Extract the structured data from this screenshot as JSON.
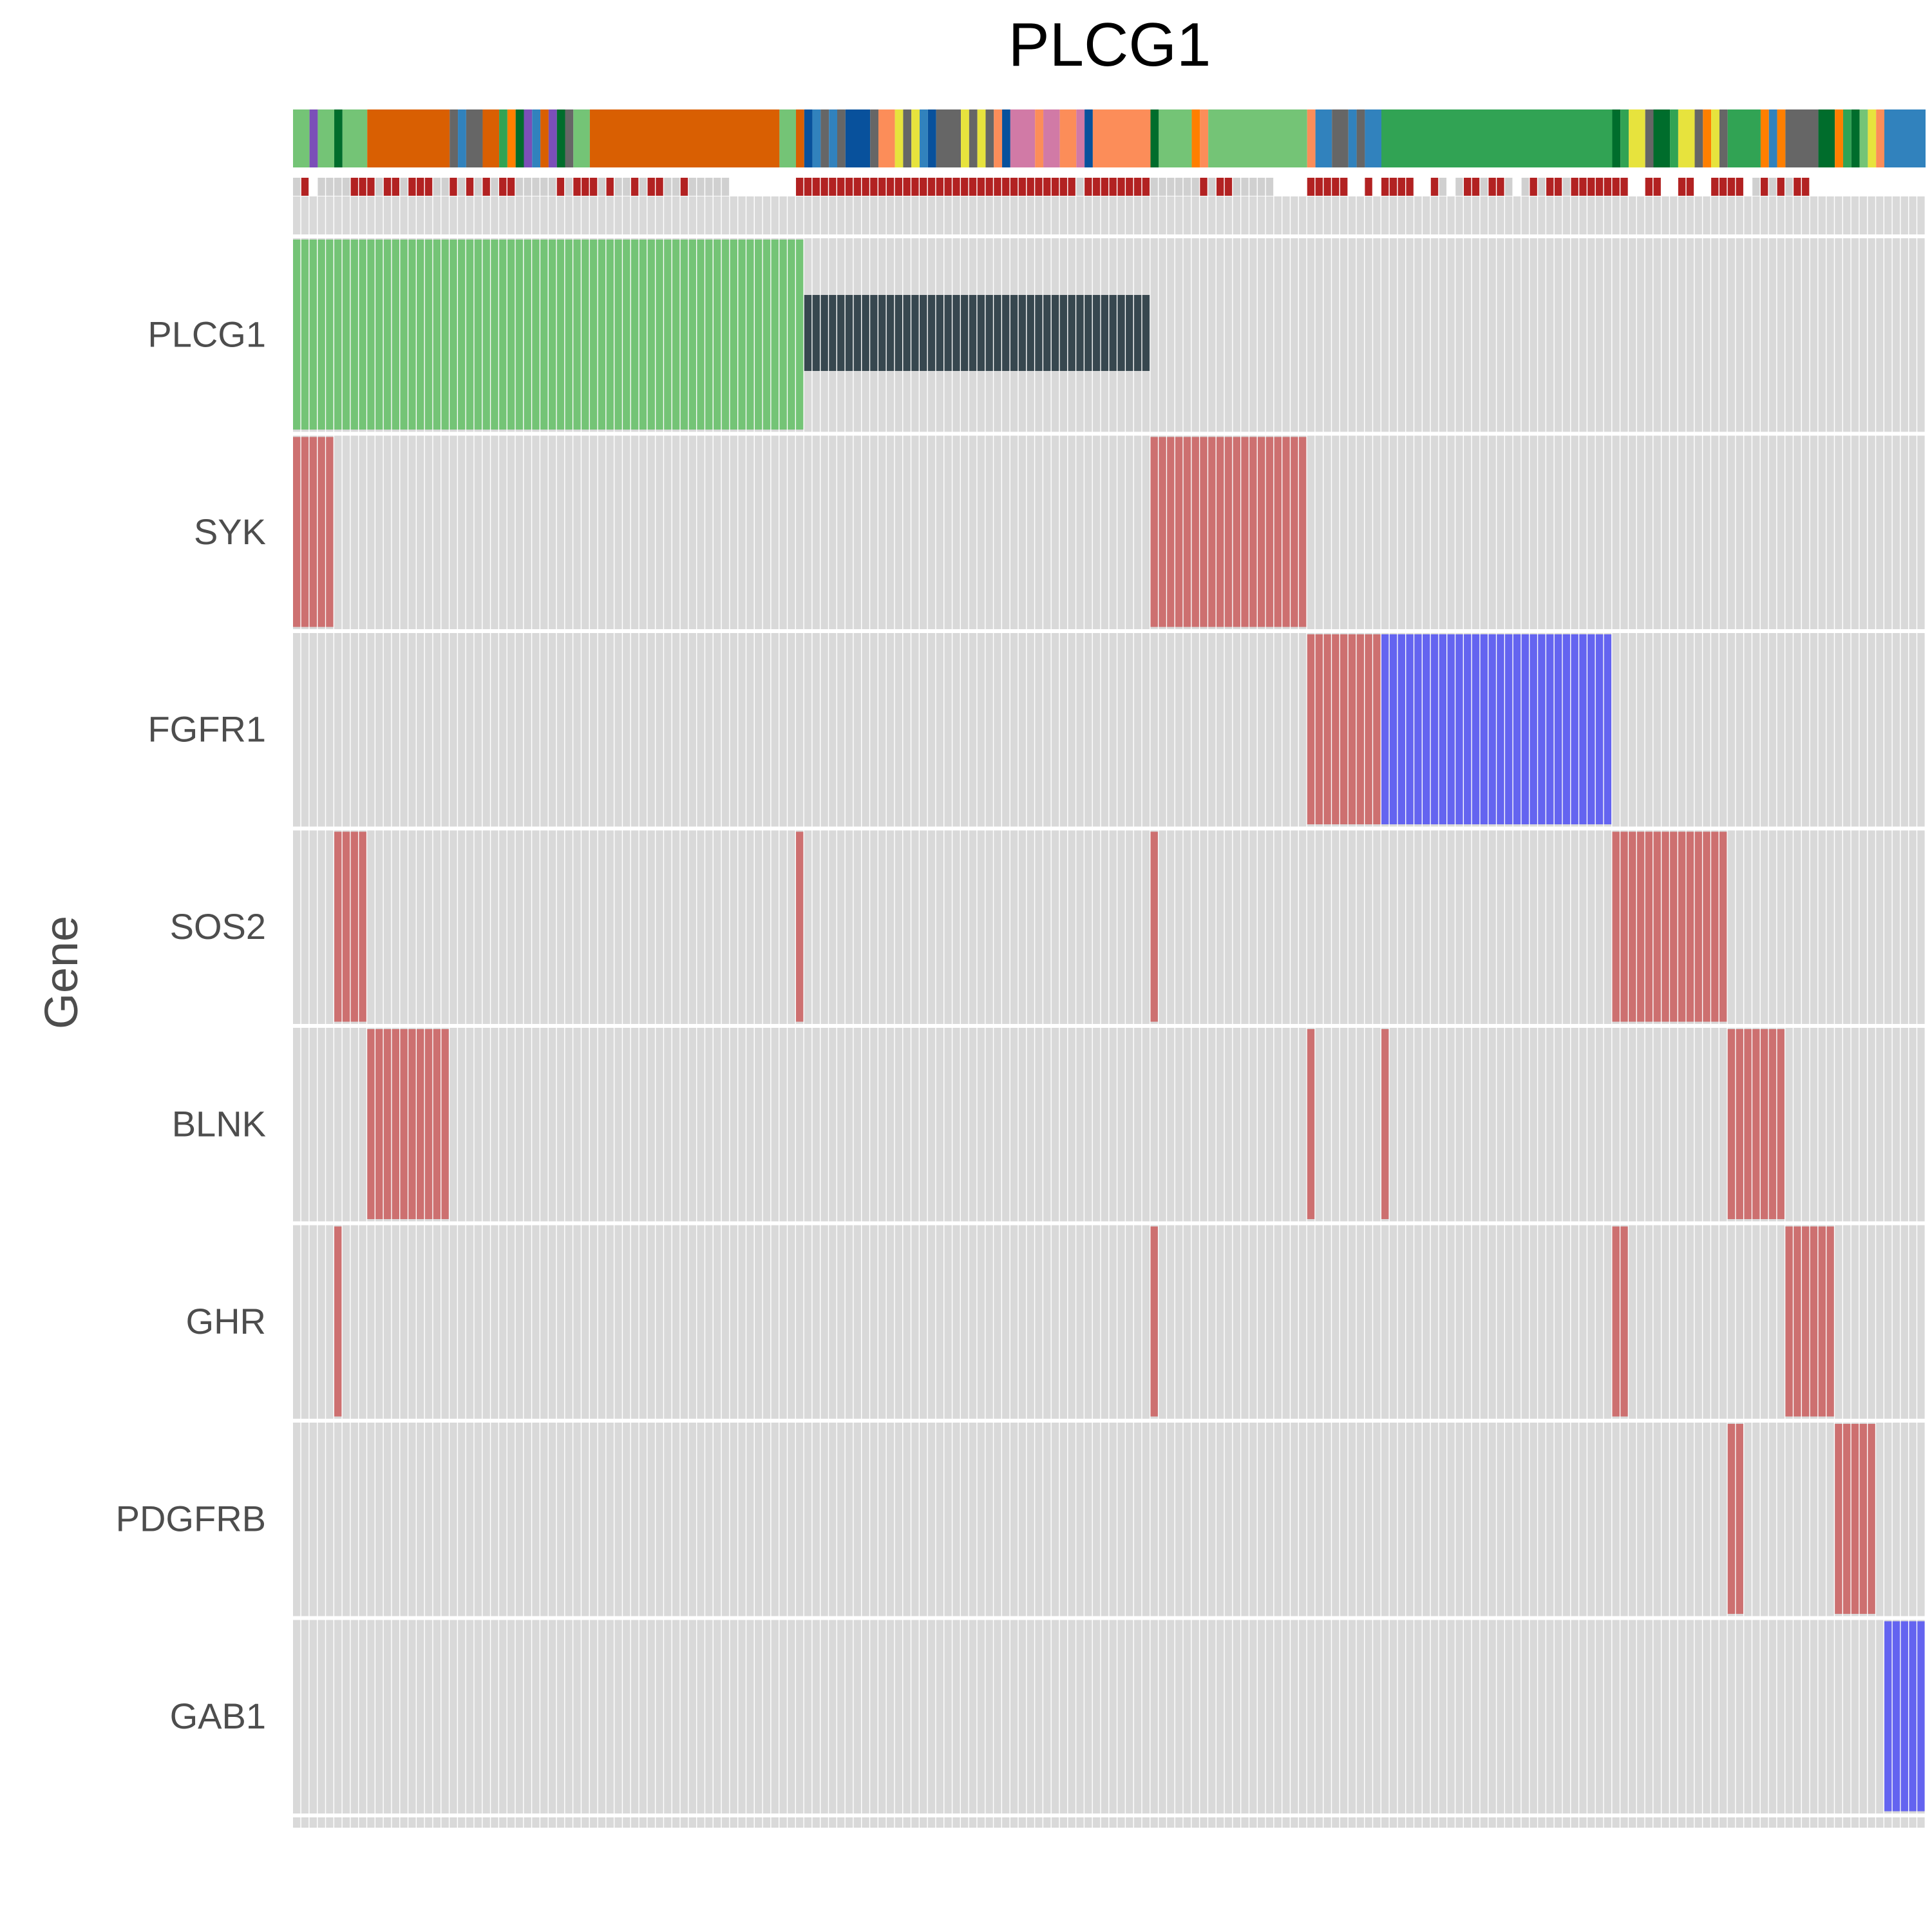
{
  "chart_data": {
    "type": "heatmap",
    "title": "PLCG1",
    "ylabel": "Gene",
    "xlabel": "",
    "genes": [
      "PLCG1",
      "SYK",
      "FGFR1",
      "SOS2",
      "BLNK",
      "GHR",
      "PDGFRB",
      "GAB1"
    ],
    "n_samples": 198,
    "alteration_colors": {
      "green": "#74c476",
      "dark": "#37474f",
      "red": "#cd7070",
      "blue": "#6464f0",
      "empty": "#d9d9d9"
    },
    "alterations": [
      {
        "gene": "PLCG1",
        "start": 0,
        "end": 62,
        "color": "green",
        "span": "full"
      },
      {
        "gene": "PLCG1",
        "start": 62,
        "end": 104,
        "color": "dark",
        "span": "partial"
      },
      {
        "gene": "SYK",
        "start": 0,
        "end": 5,
        "color": "red",
        "span": "full"
      },
      {
        "gene": "SYK",
        "start": 104,
        "end": 123,
        "color": "red",
        "span": "full"
      },
      {
        "gene": "FGFR1",
        "start": 123,
        "end": 132,
        "color": "red",
        "span": "full"
      },
      {
        "gene": "FGFR1",
        "start": 132,
        "end": 160,
        "color": "blue",
        "span": "full"
      },
      {
        "gene": "SOS2",
        "start": 5,
        "end": 9,
        "color": "red",
        "span": "full"
      },
      {
        "gene": "SOS2",
        "start": 61,
        "end": 62,
        "color": "red",
        "span": "full"
      },
      {
        "gene": "SOS2",
        "start": 104,
        "end": 105,
        "color": "red",
        "span": "full"
      },
      {
        "gene": "SOS2",
        "start": 160,
        "end": 174,
        "color": "red",
        "span": "full"
      },
      {
        "gene": "BLNK",
        "start": 9,
        "end": 19,
        "color": "red",
        "span": "full"
      },
      {
        "gene": "BLNK",
        "start": 123,
        "end": 124,
        "color": "red",
        "span": "full"
      },
      {
        "gene": "BLNK",
        "start": 132,
        "end": 133,
        "color": "red",
        "span": "full"
      },
      {
        "gene": "BLNK",
        "start": 174,
        "end": 181,
        "color": "red",
        "span": "full"
      },
      {
        "gene": "GHR",
        "start": 5,
        "end": 6,
        "color": "red",
        "span": "full"
      },
      {
        "gene": "GHR",
        "start": 104,
        "end": 105,
        "color": "red",
        "span": "full"
      },
      {
        "gene": "GHR",
        "start": 160,
        "end": 162,
        "color": "red",
        "span": "full"
      },
      {
        "gene": "GHR",
        "start": 181,
        "end": 187,
        "color": "red",
        "span": "full"
      },
      {
        "gene": "PDGFRB",
        "start": 174,
        "end": 176,
        "color": "red",
        "span": "full"
      },
      {
        "gene": "PDGFRB",
        "start": 187,
        "end": 192,
        "color": "red",
        "span": "full"
      },
      {
        "gene": "GAB1",
        "start": 193,
        "end": 198,
        "color": "blue",
        "span": "full"
      }
    ],
    "annotation_track_1": [
      {
        "start": 0,
        "end": 2,
        "color": "#74c476"
      },
      {
        "start": 2,
        "end": 3,
        "color": "#7b4fb8"
      },
      {
        "start": 3,
        "end": 5,
        "color": "#74c476"
      },
      {
        "start": 5,
        "end": 6,
        "color": "#006d2c"
      },
      {
        "start": 6,
        "end": 9,
        "color": "#74c476"
      },
      {
        "start": 9,
        "end": 19,
        "color": "#d95f02"
      },
      {
        "start": 19,
        "end": 20,
        "color": "#666666"
      },
      {
        "start": 20,
        "end": 21,
        "color": "#3182bd"
      },
      {
        "start": 21,
        "end": 23,
        "color": "#666666"
      },
      {
        "start": 23,
        "end": 25,
        "color": "#d95f02"
      },
      {
        "start": 25,
        "end": 26,
        "color": "#31a354"
      },
      {
        "start": 26,
        "end": 27,
        "color": "#ff7f00"
      },
      {
        "start": 27,
        "end": 28,
        "color": "#006d2c"
      },
      {
        "start": 28,
        "end": 29,
        "color": "#7b4fb8"
      },
      {
        "start": 29,
        "end": 30,
        "color": "#3182bd"
      },
      {
        "start": 30,
        "end": 31,
        "color": "#d95f02"
      },
      {
        "start": 31,
        "end": 32,
        "color": "#7b4fb8"
      },
      {
        "start": 32,
        "end": 33,
        "color": "#006d2c"
      },
      {
        "start": 33,
        "end": 34,
        "color": "#666666"
      },
      {
        "start": 34,
        "end": 36,
        "color": "#74c476"
      },
      {
        "start": 36,
        "end": 59,
        "color": "#d95f02"
      },
      {
        "start": 59,
        "end": 61,
        "color": "#74c476"
      },
      {
        "start": 61,
        "end": 62,
        "color": "#d95f02"
      },
      {
        "start": 62,
        "end": 63,
        "color": "#08519c"
      },
      {
        "start": 63,
        "end": 64,
        "color": "#3182bd"
      },
      {
        "start": 64,
        "end": 65,
        "color": "#666666"
      },
      {
        "start": 65,
        "end": 66,
        "color": "#3182bd"
      },
      {
        "start": 66,
        "end": 67,
        "color": "#666666"
      },
      {
        "start": 67,
        "end": 70,
        "color": "#08519c"
      },
      {
        "start": 70,
        "end": 71,
        "color": "#666666"
      },
      {
        "start": 71,
        "end": 73,
        "color": "#fc8d59"
      },
      {
        "start": 73,
        "end": 74,
        "color": "#e7e33d"
      },
      {
        "start": 74,
        "end": 75,
        "color": "#666666"
      },
      {
        "start": 75,
        "end": 76,
        "color": "#e7e33d"
      },
      {
        "start": 76,
        "end": 77,
        "color": "#3182bd"
      },
      {
        "start": 77,
        "end": 78,
        "color": "#08519c"
      },
      {
        "start": 78,
        "end": 81,
        "color": "#666666"
      },
      {
        "start": 81,
        "end": 82,
        "color": "#e7e33d"
      },
      {
        "start": 82,
        "end": 83,
        "color": "#666666"
      },
      {
        "start": 83,
        "end": 84,
        "color": "#e7e33d"
      },
      {
        "start": 84,
        "end": 85,
        "color": "#666666"
      },
      {
        "start": 85,
        "end": 86,
        "color": "#fc8d59"
      },
      {
        "start": 86,
        "end": 87,
        "color": "#08519c"
      },
      {
        "start": 87,
        "end": 90,
        "color": "#d17aa6"
      },
      {
        "start": 90,
        "end": 91,
        "color": "#fc8d59"
      },
      {
        "start": 91,
        "end": 93,
        "color": "#d17aa6"
      },
      {
        "start": 93,
        "end": 95,
        "color": "#fc8d59"
      },
      {
        "start": 95,
        "end": 96,
        "color": "#d17aa6"
      },
      {
        "start": 96,
        "end": 97,
        "color": "#08519c"
      },
      {
        "start": 97,
        "end": 104,
        "color": "#fc8d59"
      },
      {
        "start": 104,
        "end": 105,
        "color": "#006d2c"
      },
      {
        "start": 105,
        "end": 109,
        "color": "#74c476"
      },
      {
        "start": 109,
        "end": 110,
        "color": "#ff7f00"
      },
      {
        "start": 110,
        "end": 111,
        "color": "#fc8d59"
      },
      {
        "start": 111,
        "end": 123,
        "color": "#74c476"
      },
      {
        "start": 123,
        "end": 124,
        "color": "#fc8d59"
      },
      {
        "start": 124,
        "end": 126,
        "color": "#3182bd"
      },
      {
        "start": 126,
        "end": 128,
        "color": "#666666"
      },
      {
        "start": 128,
        "end": 129,
        "color": "#3182bd"
      },
      {
        "start": 129,
        "end": 130,
        "color": "#666666"
      },
      {
        "start": 130,
        "end": 132,
        "color": "#3182bd"
      },
      {
        "start": 132,
        "end": 160,
        "color": "#31a354"
      },
      {
        "start": 160,
        "end": 161,
        "color": "#006d2c"
      },
      {
        "start": 161,
        "end": 162,
        "color": "#31a354"
      },
      {
        "start": 162,
        "end": 164,
        "color": "#e7e33d"
      },
      {
        "start": 164,
        "end": 165,
        "color": "#666666"
      },
      {
        "start": 165,
        "end": 167,
        "color": "#006d2c"
      },
      {
        "start": 167,
        "end": 168,
        "color": "#31a354"
      },
      {
        "start": 168,
        "end": 170,
        "color": "#e7e33d"
      },
      {
        "start": 170,
        "end": 171,
        "color": "#666666"
      },
      {
        "start": 171,
        "end": 172,
        "color": "#ff7f00"
      },
      {
        "start": 172,
        "end": 173,
        "color": "#e7e33d"
      },
      {
        "start": 173,
        "end": 174,
        "color": "#666666"
      },
      {
        "start": 174,
        "end": 178,
        "color": "#31a354"
      },
      {
        "start": 178,
        "end": 179,
        "color": "#ff7f00"
      },
      {
        "start": 179,
        "end": 180,
        "color": "#3182bd"
      },
      {
        "start": 180,
        "end": 181,
        "color": "#ff7f00"
      },
      {
        "start": 181,
        "end": 185,
        "color": "#666666"
      },
      {
        "start": 185,
        "end": 187,
        "color": "#006d2c"
      },
      {
        "start": 187,
        "end": 188,
        "color": "#ff7f00"
      },
      {
        "start": 188,
        "end": 189,
        "color": "#31a354"
      },
      {
        "start": 189,
        "end": 190,
        "color": "#006d2c"
      },
      {
        "start": 190,
        "end": 191,
        "color": "#74c476"
      },
      {
        "start": 191,
        "end": 192,
        "color": "#e7e33d"
      },
      {
        "start": 192,
        "end": 193,
        "color": "#fc8d59"
      },
      {
        "start": 193,
        "end": 198,
        "color": "#3182bd"
      }
    ],
    "annotation_track_2": [
      {
        "start": 0,
        "end": 1,
        "color": "#d0d0d0"
      },
      {
        "start": 1,
        "end": 2,
        "color": "#b22222"
      },
      {
        "start": 3,
        "end": 7,
        "color": "#d0d0d0"
      },
      {
        "start": 7,
        "end": 10,
        "color": "#b22222"
      },
      {
        "start": 10,
        "end": 11,
        "color": "#d0d0d0"
      },
      {
        "start": 11,
        "end": 13,
        "color": "#b22222"
      },
      {
        "start": 13,
        "end": 14,
        "color": "#d0d0d0"
      },
      {
        "start": 14,
        "end": 17,
        "color": "#b22222"
      },
      {
        "start": 17,
        "end": 19,
        "color": "#d0d0d0"
      },
      {
        "start": 19,
        "end": 20,
        "color": "#b22222"
      },
      {
        "start": 20,
        "end": 21,
        "color": "#d0d0d0"
      },
      {
        "start": 21,
        "end": 22,
        "color": "#b22222"
      },
      {
        "start": 22,
        "end": 23,
        "color": "#d0d0d0"
      },
      {
        "start": 23,
        "end": 24,
        "color": "#b22222"
      },
      {
        "start": 24,
        "end": 25,
        "color": "#d0d0d0"
      },
      {
        "start": 25,
        "end": 27,
        "color": "#b22222"
      },
      {
        "start": 27,
        "end": 32,
        "color": "#d0d0d0"
      },
      {
        "start": 32,
        "end": 33,
        "color": "#b22222"
      },
      {
        "start": 33,
        "end": 34,
        "color": "#d0d0d0"
      },
      {
        "start": 34,
        "end": 37,
        "color": "#b22222"
      },
      {
        "start": 37,
        "end": 38,
        "color": "#d0d0d0"
      },
      {
        "start": 38,
        "end": 39,
        "color": "#b22222"
      },
      {
        "start": 39,
        "end": 41,
        "color": "#d0d0d0"
      },
      {
        "start": 41,
        "end": 42,
        "color": "#b22222"
      },
      {
        "start": 42,
        "end": 43,
        "color": "#d0d0d0"
      },
      {
        "start": 43,
        "end": 45,
        "color": "#b22222"
      },
      {
        "start": 45,
        "end": 47,
        "color": "#d0d0d0"
      },
      {
        "start": 47,
        "end": 48,
        "color": "#b22222"
      },
      {
        "start": 48,
        "end": 53,
        "color": "#d0d0d0"
      },
      {
        "start": 61,
        "end": 95,
        "color": "#b22222"
      },
      {
        "start": 95,
        "end": 96,
        "color": "#d0d0d0"
      },
      {
        "start": 96,
        "end": 104,
        "color": "#b22222"
      },
      {
        "start": 104,
        "end": 110,
        "color": "#d0d0d0"
      },
      {
        "start": 110,
        "end": 111,
        "color": "#b22222"
      },
      {
        "start": 111,
        "end": 112,
        "color": "#d0d0d0"
      },
      {
        "start": 112,
        "end": 114,
        "color": "#b22222"
      },
      {
        "start": 114,
        "end": 119,
        "color": "#d0d0d0"
      },
      {
        "start": 123,
        "end": 128,
        "color": "#b22222"
      },
      {
        "start": 130,
        "end": 131,
        "color": "#b22222"
      },
      {
        "start": 132,
        "end": 136,
        "color": "#b22222"
      },
      {
        "start": 138,
        "end": 139,
        "color": "#b22222"
      },
      {
        "start": 139,
        "end": 140,
        "color": "#d0d0d0"
      },
      {
        "start": 141,
        "end": 142,
        "color": "#d0d0d0"
      },
      {
        "start": 142,
        "end": 144,
        "color": "#b22222"
      },
      {
        "start": 144,
        "end": 145,
        "color": "#d0d0d0"
      },
      {
        "start": 145,
        "end": 147,
        "color": "#b22222"
      },
      {
        "start": 147,
        "end": 148,
        "color": "#d0d0d0"
      },
      {
        "start": 149,
        "end": 150,
        "color": "#d0d0d0"
      },
      {
        "start": 150,
        "end": 151,
        "color": "#b22222"
      },
      {
        "start": 151,
        "end": 152,
        "color": "#d0d0d0"
      },
      {
        "start": 152,
        "end": 154,
        "color": "#b22222"
      },
      {
        "start": 154,
        "end": 155,
        "color": "#d0d0d0"
      },
      {
        "start": 155,
        "end": 156,
        "color": "#b22222"
      },
      {
        "start": 156,
        "end": 162,
        "color": "#b22222"
      },
      {
        "start": 164,
        "end": 166,
        "color": "#b22222"
      },
      {
        "start": 168,
        "end": 170,
        "color": "#b22222"
      },
      {
        "start": 172,
        "end": 176,
        "color": "#b22222"
      },
      {
        "start": 177,
        "end": 178,
        "color": "#d0d0d0"
      },
      {
        "start": 178,
        "end": 179,
        "color": "#b22222"
      },
      {
        "start": 179,
        "end": 180,
        "color": "#d0d0d0"
      },
      {
        "start": 180,
        "end": 181,
        "color": "#b22222"
      },
      {
        "start": 181,
        "end": 182,
        "color": "#d0d0d0"
      },
      {
        "start": 182,
        "end": 184,
        "color": "#b22222"
      }
    ]
  }
}
